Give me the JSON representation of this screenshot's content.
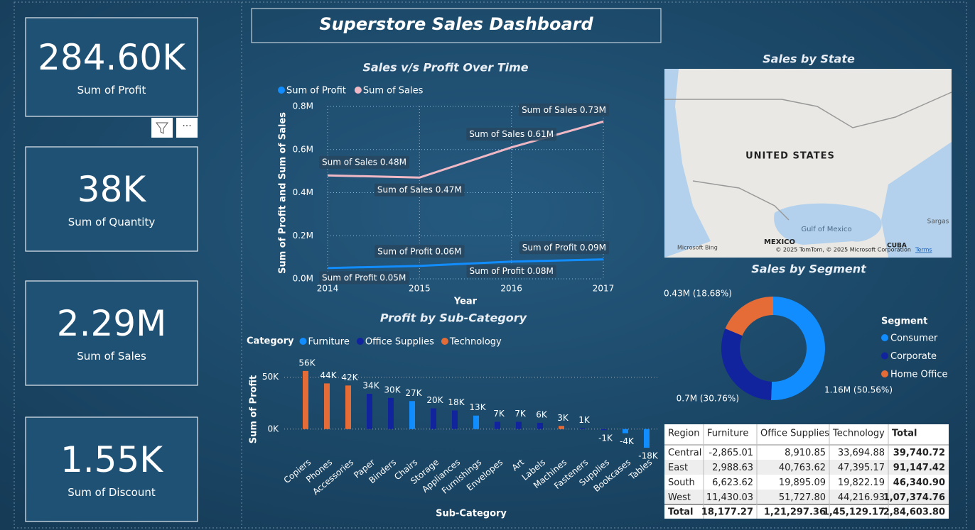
{
  "title": "Superstore Sales Dashboard",
  "kpis": [
    {
      "value": "284.60K",
      "label": "Sum of Profit"
    },
    {
      "value": "38K",
      "label": "Sum of Quantity"
    },
    {
      "value": "2.29M",
      "label": "Sum of Sales"
    },
    {
      "value": "1.55K",
      "label": "Sum of Discount"
    }
  ],
  "chart_data": [
    {
      "type": "line",
      "title": "Sales v/s Profit Over Time",
      "x": [
        2014,
        2015,
        2016,
        2017
      ],
      "xlim": [
        2014,
        2017
      ],
      "xticks": [
        2014,
        2015,
        2016,
        2017
      ],
      "x_label": "Year",
      "y_label": "Sum of Profit and Sum of Sales",
      "ylim": [
        0,
        0.8
      ],
      "yticks": [
        {
          "value": 0,
          "label": "0.0M"
        },
        {
          "value": 0.2,
          "label": "0.2M"
        },
        {
          "value": 0.4,
          "label": "0.4M"
        },
        {
          "value": 0.6,
          "label": "0.6M"
        },
        {
          "value": 0.8,
          "label": "0.8M"
        }
      ],
      "grid": true,
      "series": [
        {
          "name": "Sum of Profit",
          "color": "#118dff",
          "values": [
            0.05,
            0.06,
            0.08,
            0.09
          ],
          "value_labels": [
            "Sum of Profit 0.05M",
            "Sum of Profit 0.06M",
            "Sum of Profit 0.08M",
            "Sum of Profit 0.09M"
          ]
        },
        {
          "name": "Sum of Sales",
          "color": "#f0b8c4",
          "values": [
            0.48,
            0.47,
            0.61,
            0.73
          ],
          "value_labels": [
            "Sum of Sales 0.48M",
            "Sum of Sales 0.47M",
            "Sum of Sales 0.61M",
            "Sum of Sales 0.73M"
          ]
        }
      ]
    },
    {
      "type": "bar",
      "title": "Profit by Sub-Category",
      "legend_title": "Category",
      "legend": [
        {
          "name": "Furniture",
          "color": "#118dff"
        },
        {
          "name": "Office Supplies",
          "color": "#12239e"
        },
        {
          "name": "Technology",
          "color": "#e66c37"
        }
      ],
      "categories": [
        "Copiers",
        "Phones",
        "Accessories",
        "Paper",
        "Binders",
        "Chairs",
        "Storage",
        "Appliances",
        "Furnishings",
        "Envelopes",
        "Art",
        "Labels",
        "Machines",
        "Fasteners",
        "Supplies",
        "Bookcases",
        "Tables"
      ],
      "values": [
        56,
        44,
        42,
        34,
        30,
        27,
        20,
        18,
        13,
        7,
        7,
        6,
        3,
        1,
        -1,
        -4,
        -18
      ],
      "value_labels": [
        "56K",
        "44K",
        "42K",
        "34K",
        "30K",
        "27K",
        "20K",
        "18K",
        "13K",
        "7K",
        "7K",
        "6K",
        "3K",
        "1K",
        "-1K",
        "-4K",
        "-18K"
      ],
      "colors": [
        "#e66c37",
        "#e66c37",
        "#e66c37",
        "#12239e",
        "#12239e",
        "#118dff",
        "#12239e",
        "#12239e",
        "#118dff",
        "#12239e",
        "#12239e",
        "#12239e",
        "#e66c37",
        "#12239e",
        "#12239e",
        "#118dff",
        "#118dff"
      ],
      "x_label": "Sub-Category",
      "y_label": "Sum of Profit",
      "ylim": [
        -20,
        60
      ],
      "yticks": [
        {
          "value": 0,
          "label": "0K"
        },
        {
          "value": 50,
          "label": "50K"
        }
      ],
      "grid": true
    },
    {
      "type": "pie",
      "title": "Sales by Segment",
      "legend_title": "Segment",
      "categories": [
        "Consumer",
        "Corporate",
        "Home Office"
      ],
      "values": [
        1.16,
        0.7,
        0.43
      ],
      "value_labels": [
        "1.16M (50.56%)",
        "0.7M (30.76%)",
        "0.43M (18.68%)"
      ],
      "colors": [
        "#118dff",
        "#12239e",
        "#e66c37"
      ]
    }
  ],
  "map": {
    "title": "Sales by State",
    "labels": [
      "UNITED STATES",
      "MEXICO",
      "Gulf of Mexico",
      "CUBA",
      "Sargas",
      "Microsoft Bing",
      "© 2025 TomTom, © 2025 Microsoft Corporation",
      "Terms"
    ]
  },
  "table": {
    "header": [
      "Region",
      "Furniture",
      "Office Supplies",
      "Technology",
      "Total"
    ],
    "rows": [
      [
        "Central",
        "-2,865.01",
        "8,910.85",
        "33,694.88",
        "39,740.72"
      ],
      [
        "East",
        "2,988.63",
        "40,763.62",
        "47,395.17",
        "91,147.42"
      ],
      [
        "South",
        "6,623.62",
        "19,895.09",
        "19,822.19",
        "46,340.90"
      ],
      [
        "West",
        "11,430.03",
        "51,727.80",
        "44,216.93",
        "1,07,374.76"
      ],
      [
        "Total",
        "18,177.27",
        "1,21,297.36",
        "1,45,129.17",
        "2,84,603.80"
      ]
    ]
  }
}
